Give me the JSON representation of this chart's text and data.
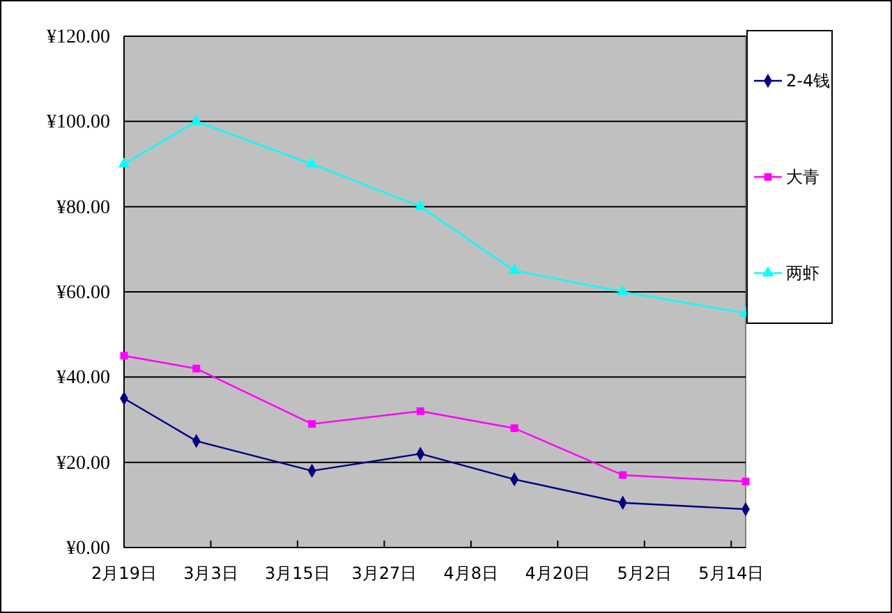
{
  "chart_data": {
    "type": "line",
    "x": [
      "--02-19",
      "--03-01",
      "--03-17",
      "--04-01",
      "--04-14",
      "--04-29",
      "--05-16"
    ],
    "series": [
      {
        "name": "2-4钱",
        "color": "#000080",
        "marker": "diamond",
        "values": [
          35,
          25,
          18,
          22,
          16,
          10.5,
          9
        ]
      },
      {
        "name": "大青",
        "color": "#ff00ff",
        "marker": "square",
        "values": [
          45,
          42,
          29,
          32,
          28,
          17,
          15.5
        ]
      },
      {
        "name": "两虾",
        "color": "#00ffff",
        "marker": "triangle",
        "values": [
          90,
          100,
          90,
          80,
          65,
          60,
          55
        ]
      }
    ],
    "xlim": [
      "--02-19",
      "--05-16"
    ],
    "xticks": [
      {
        "value": "--02-19",
        "label": "2月19日"
      },
      {
        "value": "--03-03",
        "label": "3月3日"
      },
      {
        "value": "--03-15",
        "label": "3月15日"
      },
      {
        "value": "--03-27",
        "label": "3月27日"
      },
      {
        "value": "--04-08",
        "label": "4月8日"
      },
      {
        "value": "--04-20",
        "label": "4月20日"
      },
      {
        "value": "--05-02",
        "label": "5月2日"
      },
      {
        "value": "--05-14",
        "label": "5月14日"
      }
    ],
    "ylim": [
      0,
      120
    ],
    "yticks": [
      {
        "value": 0,
        "label": "¥0.00"
      },
      {
        "value": 20,
        "label": "¥20.00"
      },
      {
        "value": 40,
        "label": "¥40.00"
      },
      {
        "value": 60,
        "label": "¥60.00"
      },
      {
        "value": 80,
        "label": "¥80.00"
      },
      {
        "value": 100,
        "label": "¥100.00"
      },
      {
        "value": 120,
        "label": "¥120.00"
      }
    ],
    "grid": "y",
    "legend": "right",
    "line_style": "solid"
  }
}
